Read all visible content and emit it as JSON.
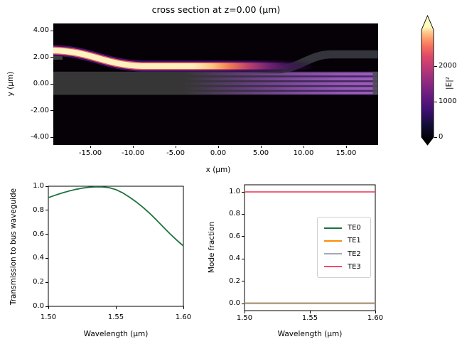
{
  "figure": {
    "kind": "matplotlib-style simulation figure",
    "background": "#ffffff"
  },
  "chart_data": [
    {
      "id": "field_cross_section",
      "type": "heatmap",
      "title": "cross section at z=0.00 (μm)",
      "xlabel": "x (μm)",
      "ylabel": "y (μm)",
      "xlim": [
        -19.3,
        18.8
      ],
      "ylim": [
        -4.6,
        4.6
      ],
      "xticks": {
        "values": [
          -15,
          -10,
          -5,
          0,
          5,
          10,
          15
        ],
        "labels": [
          "-15.00",
          "-10.00",
          "-5.00",
          "0.00",
          "5.00",
          "10.00",
          "15.00"
        ]
      },
      "yticks": {
        "values": [
          4,
          2,
          0,
          -2,
          -4
        ],
        "labels": [
          "4.00",
          "2.00",
          "0.00",
          "-2.00",
          "-4.00"
        ]
      },
      "colormap": "magma",
      "colormap_stops": [
        "#000004",
        "#140e36",
        "#3b0f70",
        "#641a80",
        "#8c2981",
        "#b73779",
        "#de4968",
        "#f7705c",
        "#fe9f6d",
        "#fece91",
        "#fcfdbf"
      ],
      "colorbar": {
        "label": "|E|²",
        "tick_values": [
          0,
          1000,
          2000
        ],
        "tick_labels": [
          "0",
          "1000",
          "2000"
        ],
        "extend": "both",
        "vmax_approx": 3000
      },
      "features": {
        "input_waveguide": "bright S-bend guide entering at left edge near y=2.3 um, bending down to y=1.2 um by x=-10 um, then running horizontally; intensity fades out by x=3 um as power couples into the bus",
        "bus_waveguide": "gray slab from y=-0.8 um to y=0.9 um across the full width; purple striped multimode interference pattern grows toward the right edge",
        "output_guide": "dark unexcited guide hugging the bus top, bending up from y=1.2 um near x=6 um to y=2.2 um near x=13 um, continuing to the right edge",
        "peak_intensity_approx": 2900
      }
    },
    {
      "id": "transmission",
      "type": "line",
      "xlabel": "Wavelength (μm)",
      "ylabel": "Transmission to bus waveguide",
      "xlim": [
        1.5,
        1.6
      ],
      "ylim": [
        0.0,
        1.0
      ],
      "xticks": {
        "values": [
          1.5,
          1.55,
          1.6
        ],
        "labels": [
          "1.50",
          "1.55",
          "1.60"
        ]
      },
      "yticks": {
        "values": [
          0.0,
          0.2,
          0.4,
          0.6,
          0.8,
          1.0
        ],
        "labels": [
          "0.0",
          "0.2",
          "0.4",
          "0.6",
          "0.8",
          "1.0"
        ]
      },
      "grid": false,
      "series": [
        {
          "name": "transmission",
          "color": "#1e7140",
          "x": [
            1.5,
            1.505,
            1.51,
            1.515,
            1.52,
            1.525,
            1.53,
            1.535,
            1.54,
            1.545,
            1.55,
            1.555,
            1.56,
            1.565,
            1.57,
            1.575,
            1.58,
            1.585,
            1.59,
            1.595,
            1.6
          ],
          "y": [
            0.905,
            0.925,
            0.943,
            0.959,
            0.973,
            0.984,
            0.991,
            0.995,
            0.994,
            0.988,
            0.972,
            0.945,
            0.91,
            0.87,
            0.825,
            0.775,
            0.72,
            0.662,
            0.605,
            0.552,
            0.503
          ]
        }
      ]
    },
    {
      "id": "mode_fraction",
      "type": "line",
      "xlabel": "Wavelength (μm)",
      "ylabel": "Mode fraction",
      "xlim": [
        1.5,
        1.6
      ],
      "ylim": [
        -0.06,
        1.05
      ],
      "xticks": {
        "values": [
          1.5,
          1.55,
          1.6
        ],
        "labels": [
          "1.50",
          "1.55",
          "1.60"
        ]
      },
      "yticks": {
        "values": [
          0.0,
          0.2,
          0.4,
          0.6,
          0.8,
          1.0
        ],
        "labels": [
          "0.0",
          "0.2",
          "0.4",
          "0.6",
          "0.8",
          "1.0"
        ]
      },
      "grid": false,
      "legend": {
        "position": "center right"
      },
      "series": [
        {
          "name": "TE0",
          "color": "#1e7140",
          "x": [
            1.5,
            1.6
          ],
          "y": [
            0.0,
            0.0
          ]
        },
        {
          "name": "TE1",
          "color": "#ff8b06",
          "x": [
            1.5,
            1.6
          ],
          "y": [
            0.0,
            0.0
          ]
        },
        {
          "name": "TE2",
          "color": "#a5a9b4",
          "x": [
            1.5,
            1.6
          ],
          "y": [
            0.005,
            0.005
          ]
        },
        {
          "name": "TE3",
          "color": "#ee4e6a",
          "x": [
            1.5,
            1.6
          ],
          "y": [
            1.0,
            1.0
          ]
        }
      ]
    }
  ]
}
